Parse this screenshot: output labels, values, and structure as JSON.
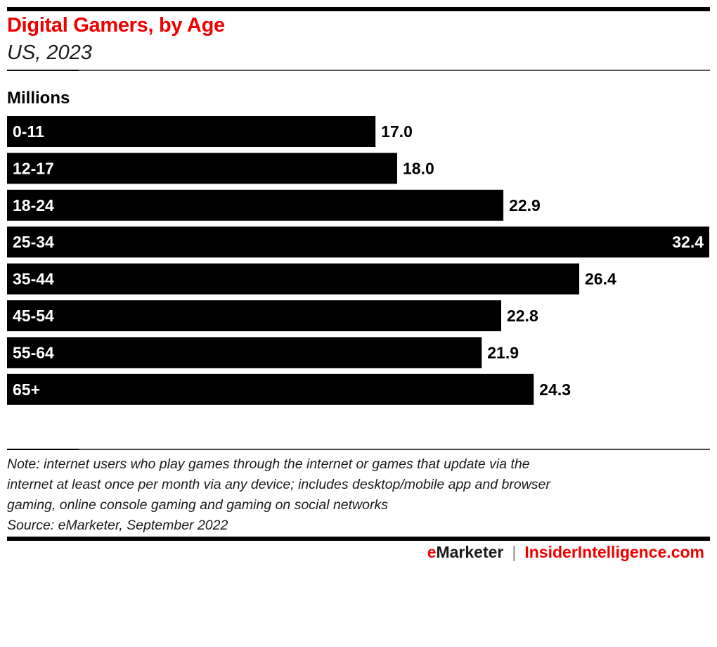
{
  "header": {
    "title": "Digital Gamers, by Age",
    "subtitle": "US, 2023",
    "unit_label": "Millions"
  },
  "colors": {
    "title": "#ee0000",
    "bar": "#000000",
    "bar_label": "#ffffff",
    "value_label": "#000000",
    "brand_red": "#ee0000"
  },
  "chart_data": {
    "type": "bar",
    "orientation": "horizontal",
    "title": "Digital Gamers, by Age",
    "subtitle": "US, 2023",
    "xlabel": "",
    "ylabel": "Millions",
    "categories": [
      "0-11",
      "12-17",
      "18-24",
      "25-34",
      "35-44",
      "45-54",
      "55-64",
      "65+"
    ],
    "values": [
      17.0,
      18.0,
      22.9,
      32.4,
      26.4,
      22.8,
      21.9,
      24.3
    ],
    "value_labels": [
      "17.0",
      "18.0",
      "22.9",
      "32.4",
      "26.4",
      "22.8",
      "21.9",
      "24.3"
    ],
    "xlim": [
      0,
      32.4
    ],
    "grid": false,
    "legend": "none"
  },
  "notes": {
    "lines": [
      "Note: internet users who play games through the internet or games that update via the",
      "internet at least once per month via any device; includes desktop/mobile app and browser",
      "gaming, online console gaming and gaming on social networks",
      "Source: eMarketer, September 2022"
    ]
  },
  "footer": {
    "brand_e": "e",
    "brand_rest": "Marketer",
    "separator": "|",
    "site": "InsiderIntelligence.com"
  }
}
